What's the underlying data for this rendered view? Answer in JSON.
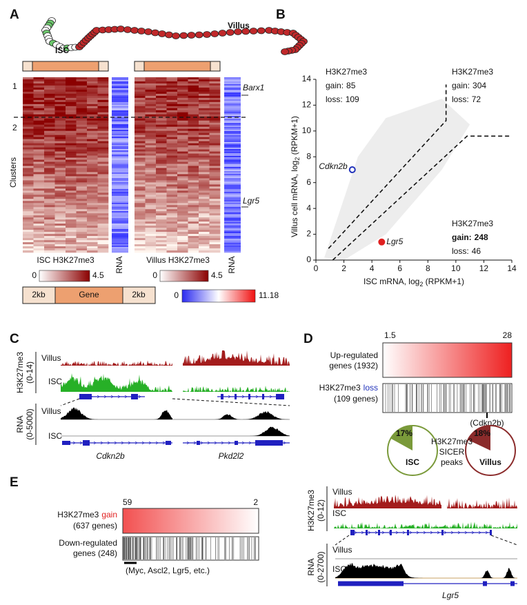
{
  "panels": {
    "a": {
      "letter": "A",
      "villus": "Villus",
      "isc": "ISC",
      "clusters": [
        "1",
        "2"
      ],
      "clusters_label": "Clusters",
      "genes": [
        "Barx1",
        "Lgr5"
      ],
      "heatmap_titles": [
        "ISC H3K27me3",
        "Villus H3K27me3"
      ],
      "rna": "RNA",
      "signal_scale": [
        "0",
        "4.5"
      ],
      "rna_scale": [
        "0",
        "11.18"
      ],
      "schematic": [
        "2kb",
        "Gene",
        "2kb"
      ]
    },
    "b": {
      "letter": "B",
      "chart_data": {
        "type": "scatter",
        "x_label": [
          "ISC mRNA, log",
          "2",
          " (RPKM+1)"
        ],
        "y_label": [
          "Villus  cell mRNA, log",
          "2",
          " (RPKM+1)"
        ],
        "xlim": [
          0,
          14
        ],
        "ylim": [
          0,
          14
        ],
        "xticks": [
          0,
          2,
          4,
          6,
          8,
          10,
          12,
          14
        ],
        "yticks": [
          0,
          2,
          4,
          6,
          8,
          10,
          12,
          14
        ],
        "groups": [
          {
            "title": "H3K27me3",
            "gain": "gain:",
            "gain_count": 85,
            "loss": "loss:",
            "loss_count": 109
          },
          {
            "title": "H3K27me3",
            "gain": "gain:",
            "gain_count": 304,
            "loss": "loss:",
            "loss_count": 72
          },
          {
            "title": "H3K27me3",
            "gain": "gain:",
            "gain_count": 248,
            "loss": "loss:",
            "loss_count": 46
          }
        ],
        "points": [
          {
            "label": "Cdkn2b",
            "x": 2.6,
            "y": 7.0,
            "color": "#2233bb"
          },
          {
            "label": "Lgr5",
            "x": 4.7,
            "y": 1.4,
            "color": "#e02020"
          }
        ]
      }
    },
    "c": {
      "letter": "C",
      "chip_label": [
        "H3K27me3",
        "(0-14)"
      ],
      "rna_label": [
        "RNA",
        "(0-5000)"
      ],
      "villus": "Villus",
      "isc": "ISC",
      "genes": [
        "Cdkn2b",
        "Pkd2l2"
      ]
    },
    "d": {
      "letter": "D",
      "scale": [
        "1.5",
        "28"
      ],
      "up_label": [
        "Up-regulated",
        "genes (1932)"
      ],
      "loss_label": [
        "H3K27me3",
        "loss",
        "(109 genes)"
      ],
      "gene": "(Cdkn2b)",
      "pies": [
        {
          "name": "ISC",
          "value": 17,
          "label": "17%",
          "color": "#7a9a3a"
        },
        {
          "name": "Villus",
          "value": 18,
          "label": "18%",
          "color": "#8b2b2b"
        }
      ],
      "pie_caption": [
        "H3K27me3",
        "SICER",
        "peaks"
      ]
    },
    "e": {
      "letter": "E",
      "scale": [
        "59",
        "2"
      ],
      "gain_label": [
        "H3K27me3",
        "gain",
        "(637 genes)"
      ],
      "down_label": [
        "Down-regulated",
        "genes (248)"
      ],
      "genes_note": "(Myc, Ascl2, Lgr5, etc.)",
      "chip_label": [
        "H3K27me3",
        "(0-12)"
      ],
      "rna_label": [
        "RNA",
        "(0-2700)"
      ],
      "villus": "Villus",
      "isc": "ISC",
      "gene": "Lgr5"
    }
  }
}
